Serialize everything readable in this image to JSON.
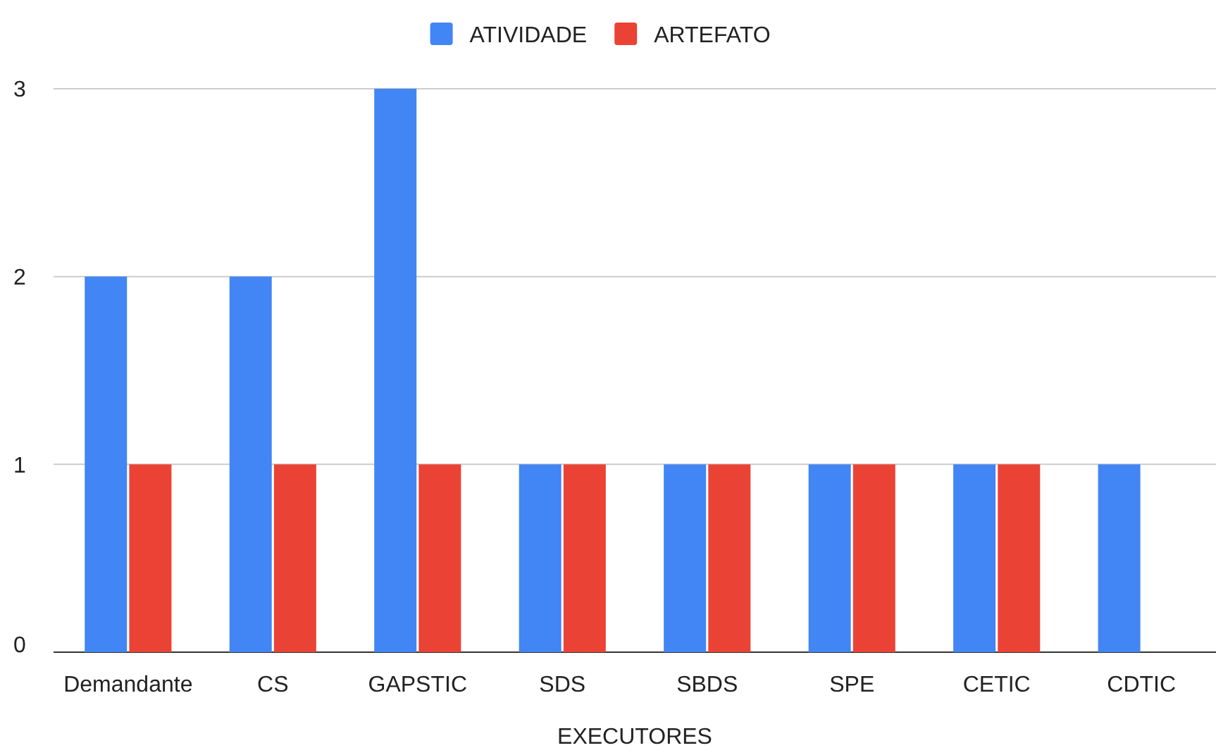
{
  "chart_data": {
    "type": "bar",
    "xlabel": "EXECUTORES",
    "categories": [
      "Demandante",
      "CS",
      "GAPSTIC",
      "SDS",
      "SBDS",
      "SPE",
      "CETIC",
      "CDTIC"
    ],
    "series": [
      {
        "name": "ATIVIDADE",
        "color": "#4285f4",
        "values": [
          2,
          2,
          3,
          1,
          1,
          1,
          1,
          1
        ]
      },
      {
        "name": "ARTEFATO",
        "color": "#ea4335",
        "values": [
          1,
          1,
          1,
          1,
          1,
          1,
          1,
          0
        ]
      }
    ],
    "ylim": [
      0,
      3
    ],
    "yticks": [
      0,
      1,
      2,
      3
    ],
    "grid": "y",
    "legend": "top"
  }
}
